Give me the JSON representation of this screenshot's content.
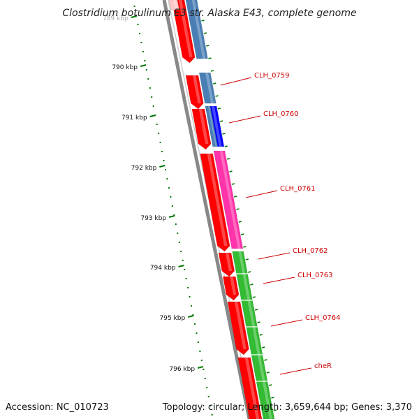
{
  "title": "Clostridium botulinum E3 str. Alaska E43, complete genome",
  "footer": {
    "accession": "Accession: NC_010723",
    "summary": "Topology: circular; Length: 3,659,644 bp; Genes: 3,370"
  },
  "ruler_ticks": [
    "789 kbp",
    "790 kbp",
    "791 kbp",
    "792 kbp",
    "793 kbp",
    "794 kbp",
    "795 kbp",
    "796 kbp"
  ],
  "gene_labels": [
    "CLH_0759",
    "CLH_0760",
    "CLH_0761",
    "CLH_0762",
    "CLH_0763",
    "CLH_0764",
    "cheR"
  ],
  "colors": {
    "backbone": "#888888",
    "cds": "#ff0000",
    "cds_faded": "#ffc8c8",
    "cog_blue": "#4a7fb5",
    "cog_darkblue": "#0000ff",
    "cog_magenta": "#ff33aa",
    "cog_green": "#33bb33",
    "ruler": "#007700",
    "label": "#cc0000"
  }
}
